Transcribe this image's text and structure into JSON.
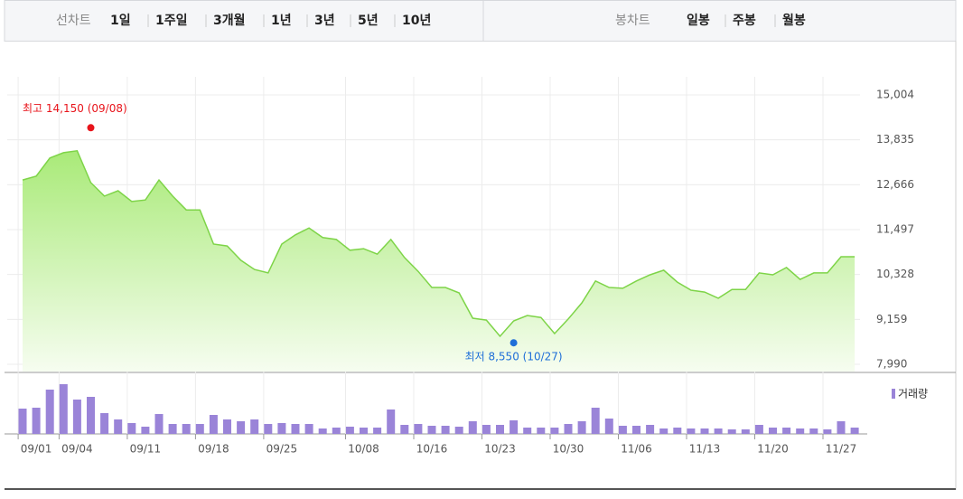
{
  "line_tabs": {
    "label": "선차트",
    "options": [
      "1일",
      "1주일",
      "3개월",
      "1년",
      "3년",
      "5년",
      "10년"
    ],
    "selected": 2
  },
  "candle_tabs": {
    "label": "봉차트",
    "options": [
      "일봉",
      "주봉",
      "월봉"
    ]
  },
  "chart_data": {
    "type": "area",
    "color": "#7ed448",
    "categories": [
      null,
      "09/01",
      null,
      null,
      "09/04",
      null,
      null,
      null,
      null,
      "09/11",
      null,
      null,
      null,
      null,
      "09/18",
      null,
      null,
      null,
      null,
      "09/25",
      null,
      null,
      null,
      null,
      null,
      "10/08",
      null,
      null,
      null,
      null,
      "10/16",
      null,
      null,
      null,
      null,
      "10/23",
      null,
      null,
      null,
      null,
      "10/30",
      null,
      null,
      null,
      null,
      "11/06",
      null,
      null,
      null,
      null,
      "11/13",
      null,
      null,
      null,
      null,
      "11/20",
      null,
      null,
      null,
      null,
      "11/27",
      null
    ],
    "values": [
      12790,
      12890,
      13360,
      13500,
      13550,
      12720,
      12370,
      12510,
      12230,
      12270,
      12790,
      12370,
      12010,
      12010,
      11120,
      11070,
      10700,
      10460,
      10370,
      11120,
      11360,
      11540,
      11290,
      11240,
      10960,
      11000,
      10860,
      11240,
      10770,
      10410,
      9990,
      9990,
      9850,
      9190,
      9140,
      8720,
      9120,
      9260,
      9210,
      8790,
      9170,
      9590,
      10160,
      9990,
      9970,
      10160,
      10320,
      10440,
      10130,
      9920,
      9870,
      9710,
      9940,
      9940,
      10370,
      10320,
      10510,
      10200,
      10370,
      10370,
      10790,
      10790
    ],
    "ylim": [
      7990,
      15004
    ],
    "yticks": [
      {
        "value": 7990,
        "label": "7,990"
      },
      {
        "value": 9159,
        "label": "9,159"
      },
      {
        "value": 10328,
        "label": "10,328"
      },
      {
        "value": 11497,
        "label": "11,497"
      },
      {
        "value": 12666,
        "label": "12,666"
      },
      {
        "value": 13835,
        "label": "13,835"
      },
      {
        "value": 15004,
        "label": "15,004"
      }
    ],
    "grid": true,
    "annotations": [
      {
        "text": "최고 14,150 (09/08)",
        "value": 14150,
        "index": 5,
        "color": "#e8141b"
      },
      {
        "text": "최저 8,550 (10/27)",
        "value": 8550,
        "index": 36,
        "color": "#1f6fd8"
      }
    ],
    "volume": {
      "type": "bar",
      "name": "거래량",
      "color": "#9a84d8",
      "ylim": [
        0,
        60
      ],
      "values": [
        28,
        29,
        49,
        55,
        38,
        41,
        23,
        16,
        12,
        8,
        22,
        11,
        11,
        11,
        21,
        16,
        14,
        16,
        11,
        12,
        11,
        11,
        6,
        7,
        8,
        7,
        7,
        27,
        10,
        11,
        9,
        9,
        8,
        14,
        10,
        10,
        15,
        7,
        7,
        7,
        11,
        14,
        29,
        17,
        9,
        9,
        10,
        6,
        7,
        6,
        6,
        6,
        5,
        5,
        10,
        7,
        7,
        6,
        6,
        5,
        14,
        7
      ]
    }
  }
}
